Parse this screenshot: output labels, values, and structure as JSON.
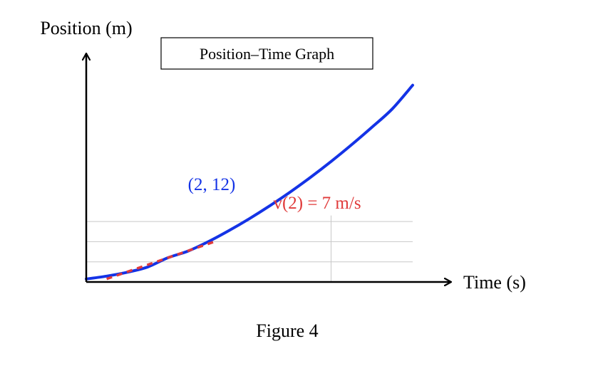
{
  "chart_data": {
    "type": "line",
    "title": "Position–Time Graph",
    "xlabel": "Time (s)",
    "ylabel": "Position (m)",
    "caption": "Figure 4",
    "grid": "partial (lower region)",
    "series": [
      {
        "values": [
          [
            0,
            1.49
          ],
          [
            0.5,
            2.9
          ],
          [
            1,
            4.79
          ],
          [
            1.5,
            7.4
          ],
          [
            2,
            12
          ],
          [
            2.5,
            15.37
          ],
          [
            3,
            20.09
          ],
          [
            3.5,
            25.53
          ],
          [
            4,
            31.44
          ],
          [
            4.5,
            37.82
          ],
          [
            5,
            44.66
          ],
          [
            5.5,
            52
          ],
          [
            6,
            59.79
          ],
          [
            6.5,
            68.06
          ],
          [
            7,
            76.77
          ],
          [
            7.5,
            85.89
          ],
          [
            8,
            97.66
          ]
        ],
        "color": "#1433e6"
      }
    ],
    "tangent": {
      "x_start": 0.5,
      "x_end": 3.2,
      "slope": 7,
      "through": [
        2,
        12
      ],
      "color": "#e03a3a"
    },
    "point_label": "(2, 12)",
    "annotation_text": "v(2) = 7 m/s",
    "colors": {
      "curve": "#1433e6",
      "tangent": "#e03a3a",
      "axis": "#000000",
      "grid": "#c8c8c8"
    }
  }
}
